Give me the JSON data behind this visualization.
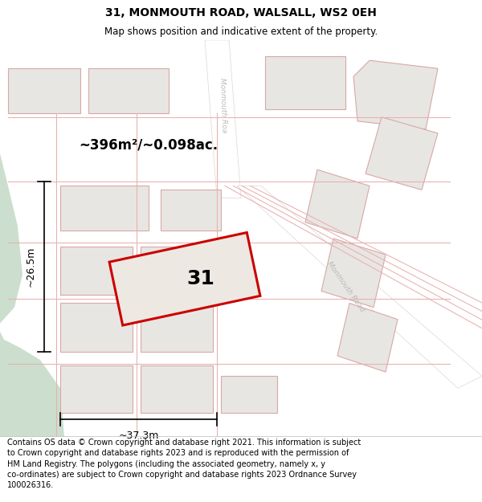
{
  "title_line1": "31, MONMOUTH ROAD, WALSALL, WS2 0EH",
  "title_line2": "Map shows position and indicative extent of the property.",
  "footer_text": "Contains OS data © Crown copyright and database right 2021. This information is subject to Crown copyright and database rights 2023 and is reproduced with the permission of HM Land Registry. The polygons (including the associated geometry, namely x, y co-ordinates) are subject to Crown copyright and database rights 2023 Ordnance Survey 100026316.",
  "map_bg": "#f2f0ed",
  "green_color": "#ccdece",
  "road_white": "#ffffff",
  "building_fill": "#e8e6e2",
  "building_edge": "#d8a8a8",
  "highlight_color": "#cc0000",
  "highlight_fill": "#ede8e2",
  "dim_line_color": "#000000",
  "road_text_color": "#bbbbbb",
  "area_text": "~396m²/~0.098ac.",
  "number_label": "31",
  "dim_width": "~37.3m",
  "dim_height": "~26.5m",
  "road_label_upper": "Monmouth Roa",
  "road_label_lower": "Monmouth Road",
  "title_fontsize": 10,
  "subtitle_fontsize": 8.5,
  "footer_fontsize": 7.0
}
